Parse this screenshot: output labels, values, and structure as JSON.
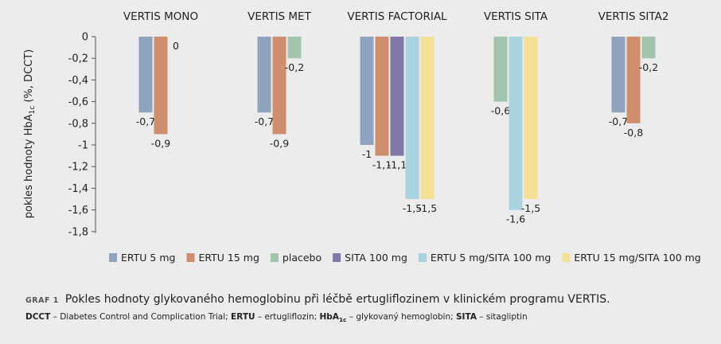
{
  "chart_data": {
    "type": "bar",
    "categories": [
      "VERTIS MONO",
      "VERTIS MET",
      "VERTIS FACTORIAL",
      "VERTIS SITA",
      "VERTIS SITA2"
    ],
    "ylabel_main": "pokles hodnoty HbA",
    "ylabel_sub": "1c",
    "ylabel_tail": " (%, DCCT)",
    "ylim": [
      -1.8,
      0
    ],
    "yticks": [
      "0",
      "-0,2",
      "-0,4",
      "-0,6",
      "-0,8",
      "-1",
      "-1,2",
      "-1,4",
      "-1,6",
      "-1,8"
    ],
    "ytick_values": [
      0,
      -0.2,
      -0.4,
      -0.6,
      -0.8,
      -1,
      -1.2,
      -1.4,
      -1.6,
      -1.8
    ],
    "series": [
      {
        "name": "ERTU 5 mg",
        "color": "#8fa3bf",
        "values": [
          -0.7,
          -0.7,
          -1.0,
          null,
          -0.7
        ],
        "labels": [
          "-0,7",
          "-0,7",
          "-1",
          "",
          "-0,7"
        ]
      },
      {
        "name": "ERTU 15 mg",
        "color": "#cf8e6d",
        "values": [
          -0.9,
          -0.9,
          -1.1,
          null,
          -0.8
        ],
        "labels": [
          "-0,9",
          "-0,9",
          "-1,1",
          "",
          "-0,8"
        ]
      },
      {
        "name": "placebo",
        "color": "#a3c4ac",
        "values": [
          0,
          -0.2,
          null,
          -0.6,
          -0.2
        ],
        "labels": [
          "0",
          "-0,2",
          "",
          "-0,6",
          "-0,2"
        ]
      },
      {
        "name": "SITA 100 mg",
        "color": "#8178a9",
        "values": [
          null,
          null,
          -1.1,
          null,
          null
        ],
        "labels": [
          "",
          "",
          "-1,1",
          "",
          ""
        ]
      },
      {
        "name": "ERTU 5 mg/SITA 100 mg",
        "color": "#a9d3df",
        "values": [
          null,
          null,
          -1.5,
          -1.6,
          null
        ],
        "labels": [
          "",
          "",
          "-1,5",
          "-1,6",
          ""
        ]
      },
      {
        "name": "ERTU 15 mg/SITA 100 mg",
        "color": "#f5df96",
        "values": [
          null,
          null,
          -1.5,
          -1.5,
          null
        ],
        "labels": [
          "",
          "",
          "-1,5",
          "-1,5",
          ""
        ]
      }
    ],
    "legend_position": "bottom",
    "grid": false
  },
  "caption": {
    "label": "GRAF 1",
    "text": "Pokles hodnoty glykovaného hemoglobinu při léčbě ertugliflozinem v klinickém programu VERTIS."
  },
  "footnote": {
    "dcct_abbr": "DCCT",
    "dcct_text": " – Diabetes Control and Complication Trial; ",
    "ertu_abbr": "ERTU",
    "ertu_text": " – ertugliflozin; ",
    "hba_abbr": "HbA",
    "hba_sub": "1c",
    "hba_text": " – glykovaný hemoglobin; ",
    "sita_abbr": "SITA",
    "sita_text": " – sitagliptin"
  }
}
